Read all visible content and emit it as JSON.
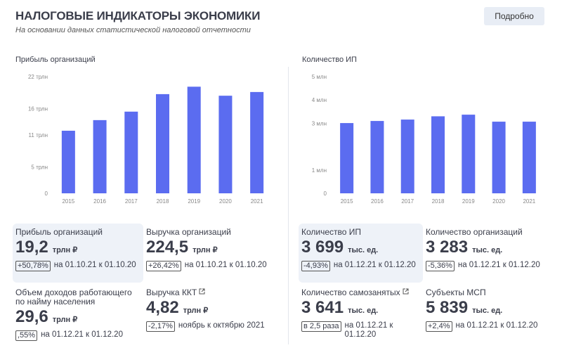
{
  "header": {
    "title": "НАЛОГОВЫЕ ИНДИКАТОРЫ ЭКОНОМИКИ",
    "subtitle": "На основании данных статистической налоговой отчетности",
    "button": "Подробно"
  },
  "chart_data": [
    {
      "type": "bar",
      "title": "Прибыль организаций",
      "categories": [
        "2015",
        "2016",
        "2017",
        "2018",
        "2019",
        "2020",
        "2021"
      ],
      "values": [
        11.8,
        13.8,
        15.4,
        18.7,
        20.1,
        18.4,
        19.1
      ],
      "color": "#5b6cf0",
      "ylim": [
        0,
        22
      ],
      "yticks": [
        0,
        {
          "value": 5,
          "label": "5 трлн"
        },
        {
          "value": 11,
          "label": "11 трлн"
        },
        {
          "value": 16,
          "label": "16 трлн"
        },
        {
          "value": 22,
          "label": "22 трлн"
        }
      ]
    },
    {
      "type": "bar",
      "title": "Количество ИП",
      "categories": [
        "2015",
        "2016",
        "2017",
        "2018",
        "2019",
        "2020",
        "2021"
      ],
      "values": [
        3.01,
        3.1,
        3.16,
        3.3,
        3.37,
        3.07,
        3.07
      ],
      "color": "#5b6cf0",
      "ylim": [
        0,
        5
      ],
      "yticks": [
        0,
        {
          "value": 1,
          "label": "1 млн"
        },
        {
          "value": 3,
          "label": "3 млн"
        },
        {
          "value": 4,
          "label": "4 млн"
        },
        {
          "value": 5,
          "label": "5 млн"
        }
      ]
    }
  ],
  "cards": [
    {
      "label": "Прибыль организаций",
      "value": "19,2",
      "unit": "трлн ₽",
      "change": "+50,78%",
      "period": "на 01.10.21 к 01.10.20"
    },
    {
      "label": "Выручка организаций",
      "value": "224,5",
      "unit": "трлн ₽",
      "change": "+26,42%",
      "period": "на 01.10.21 к 01.10.20"
    },
    {
      "label": "Объем доходов работающего по найму населения",
      "value": "29,6",
      "unit": "трлн ₽",
      "change": ",55%",
      "period": "на 01.12.21 к 01.12.20"
    },
    {
      "label": "Выручка ККТ",
      "value": "4,82",
      "unit": "трлн ₽",
      "change": "-2,17%",
      "period": "ноябрь к октябрю 2021",
      "external_link": true
    },
    {
      "label": "Количество ИП",
      "value": "3 699",
      "unit": "тыс. ед.",
      "change": "-4,93%",
      "period": "на 01.12.21 к 01.12.20"
    },
    {
      "label": "Количество организаций",
      "value": "3 283",
      "unit": "тыс. ед.",
      "change": "-5,36%",
      "period": "на 01.12.21 к 01.12.20"
    },
    {
      "label": "Количество самозанятых",
      "value": "3 641",
      "unit": "тыс. ед.",
      "change": "в 2,5 раза",
      "period": "на 01.12.21 к 01.12.20",
      "external_link": true
    },
    {
      "label": "Субъекты МСП",
      "value": "5 839",
      "unit": "тыс. ед.",
      "change": "+2,4%",
      "period": "на 01.12.21 к 01.12.20"
    }
  ]
}
